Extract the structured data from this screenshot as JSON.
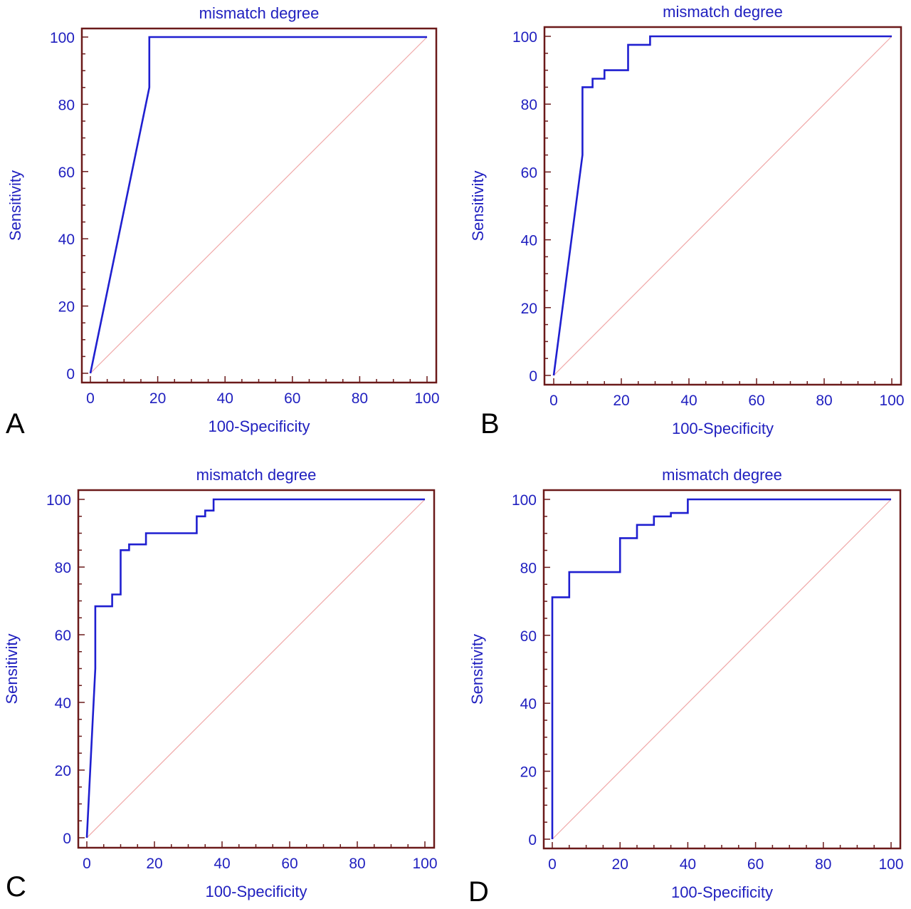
{
  "colors": {
    "frame": "#6b1a1a",
    "roc_line": "#1f1fd0",
    "diagonal": "#f0a8a8",
    "text": "#1f1fbf",
    "panel_letter": "#000000"
  },
  "chart_data": [
    {
      "panel": "A",
      "type": "line",
      "title": "mismatch degree",
      "xlabel": "100-Specificity",
      "ylabel": "Sensitivity",
      "xlim": [
        0,
        100
      ],
      "ylim": [
        0,
        100
      ],
      "xticks": [
        0,
        20,
        40,
        60,
        80,
        100
      ],
      "yticks": [
        0,
        20,
        40,
        60,
        80,
        100
      ],
      "grid": false,
      "reference_line": {
        "x": [
          0,
          100
        ],
        "y": [
          0,
          100
        ]
      },
      "series": [
        {
          "x": [
            0,
            17.5,
            17.5,
            100
          ],
          "y": [
            0,
            85,
            100,
            100
          ]
        }
      ]
    },
    {
      "panel": "B",
      "type": "line",
      "title": "mismatch degree",
      "xlabel": "100-Specificity",
      "ylabel": "Sensitivity",
      "xlim": [
        0,
        100
      ],
      "ylim": [
        0,
        100
      ],
      "xticks": [
        0,
        20,
        40,
        60,
        80,
        100
      ],
      "yticks": [
        0,
        20,
        40,
        60,
        80,
        100
      ],
      "grid": false,
      "reference_line": {
        "x": [
          0,
          100
        ],
        "y": [
          0,
          100
        ]
      },
      "series": [
        {
          "x": [
            0,
            8.5,
            8.5,
            11.5,
            11.5,
            15,
            15,
            22,
            22,
            28.5,
            28.5,
            100
          ],
          "y": [
            0,
            65,
            85,
            85,
            87.5,
            87.5,
            90,
            90,
            97.5,
            97.5,
            100,
            100
          ]
        }
      ]
    },
    {
      "panel": "C",
      "type": "line",
      "title": "mismatch degree",
      "xlabel": "100-Specificity",
      "ylabel": "Sensitivity",
      "xlim": [
        0,
        100
      ],
      "ylim": [
        0,
        100
      ],
      "xticks": [
        0,
        20,
        40,
        60,
        80,
        100
      ],
      "yticks": [
        0,
        20,
        40,
        60,
        80,
        100
      ],
      "grid": false,
      "reference_line": {
        "x": [
          0,
          100
        ],
        "y": [
          0,
          100
        ]
      },
      "series": [
        {
          "x": [
            0,
            0,
            2.5,
            2.5,
            7.5,
            7.5,
            10,
            10,
            12.5,
            12.5,
            17.5,
            17.5,
            32.5,
            32.5,
            35,
            35,
            37.5,
            37.5,
            100
          ],
          "y": [
            0,
            0,
            50,
            68.4,
            68.4,
            71.9,
            71.9,
            85,
            85,
            86.7,
            86.7,
            90,
            90,
            95,
            95,
            96.7,
            96.7,
            100,
            100
          ]
        }
      ]
    },
    {
      "panel": "D",
      "type": "line",
      "title": "mismatch degree",
      "xlabel": "100-Specificity",
      "ylabel": "Sensitivity",
      "xlim": [
        0,
        100
      ],
      "ylim": [
        0,
        100
      ],
      "xticks": [
        0,
        20,
        40,
        60,
        80,
        100
      ],
      "yticks": [
        0,
        20,
        40,
        60,
        80,
        100
      ],
      "grid": false,
      "reference_line": {
        "x": [
          0,
          100
        ],
        "y": [
          0,
          100
        ]
      },
      "series": [
        {
          "x": [
            0,
            0,
            5,
            5,
            20,
            20,
            25,
            25,
            30,
            30,
            35,
            35,
            40,
            40,
            100
          ],
          "y": [
            0,
            71.2,
            71.2,
            78.6,
            78.6,
            88.6,
            88.6,
            92.5,
            92.5,
            95,
            95,
            96,
            96,
            100,
            100
          ]
        }
      ]
    }
  ]
}
